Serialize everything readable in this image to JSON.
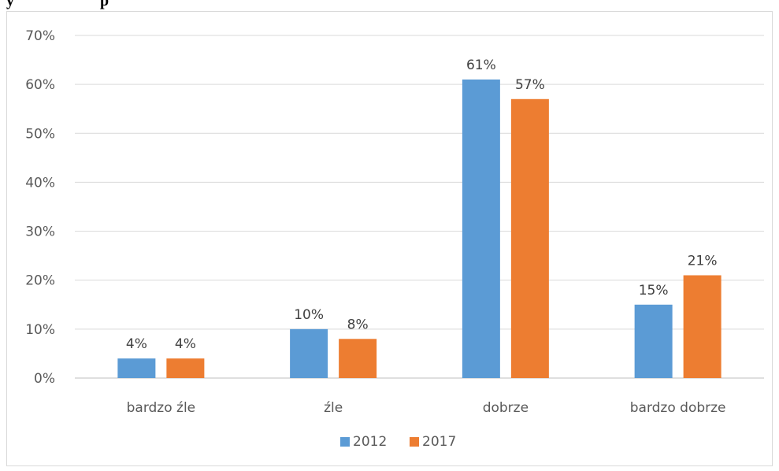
{
  "chart_data": {
    "type": "bar",
    "title": "",
    "xlabel": "",
    "ylabel": "",
    "categories": [
      "bardzo źle",
      "źle",
      "dobrze",
      "bardzo dobrze"
    ],
    "series": [
      {
        "name": "2012",
        "values": [
          4,
          10,
          61,
          15
        ],
        "labels": [
          "4%",
          "10%",
          "61%",
          "15%"
        ],
        "color": "#5b9bd5"
      },
      {
        "name": "2017",
        "values": [
          4,
          8,
          57,
          21
        ],
        "labels": [
          "4%",
          "8%",
          "57%",
          "21%"
        ],
        "color": "#ed7d31"
      }
    ],
    "ylim": [
      0,
      70
    ],
    "yticks": [
      "0%",
      "10%",
      "20%",
      "30%",
      "40%",
      "50%",
      "60%",
      "70%"
    ],
    "grid": true,
    "legend_position": "bottom"
  }
}
